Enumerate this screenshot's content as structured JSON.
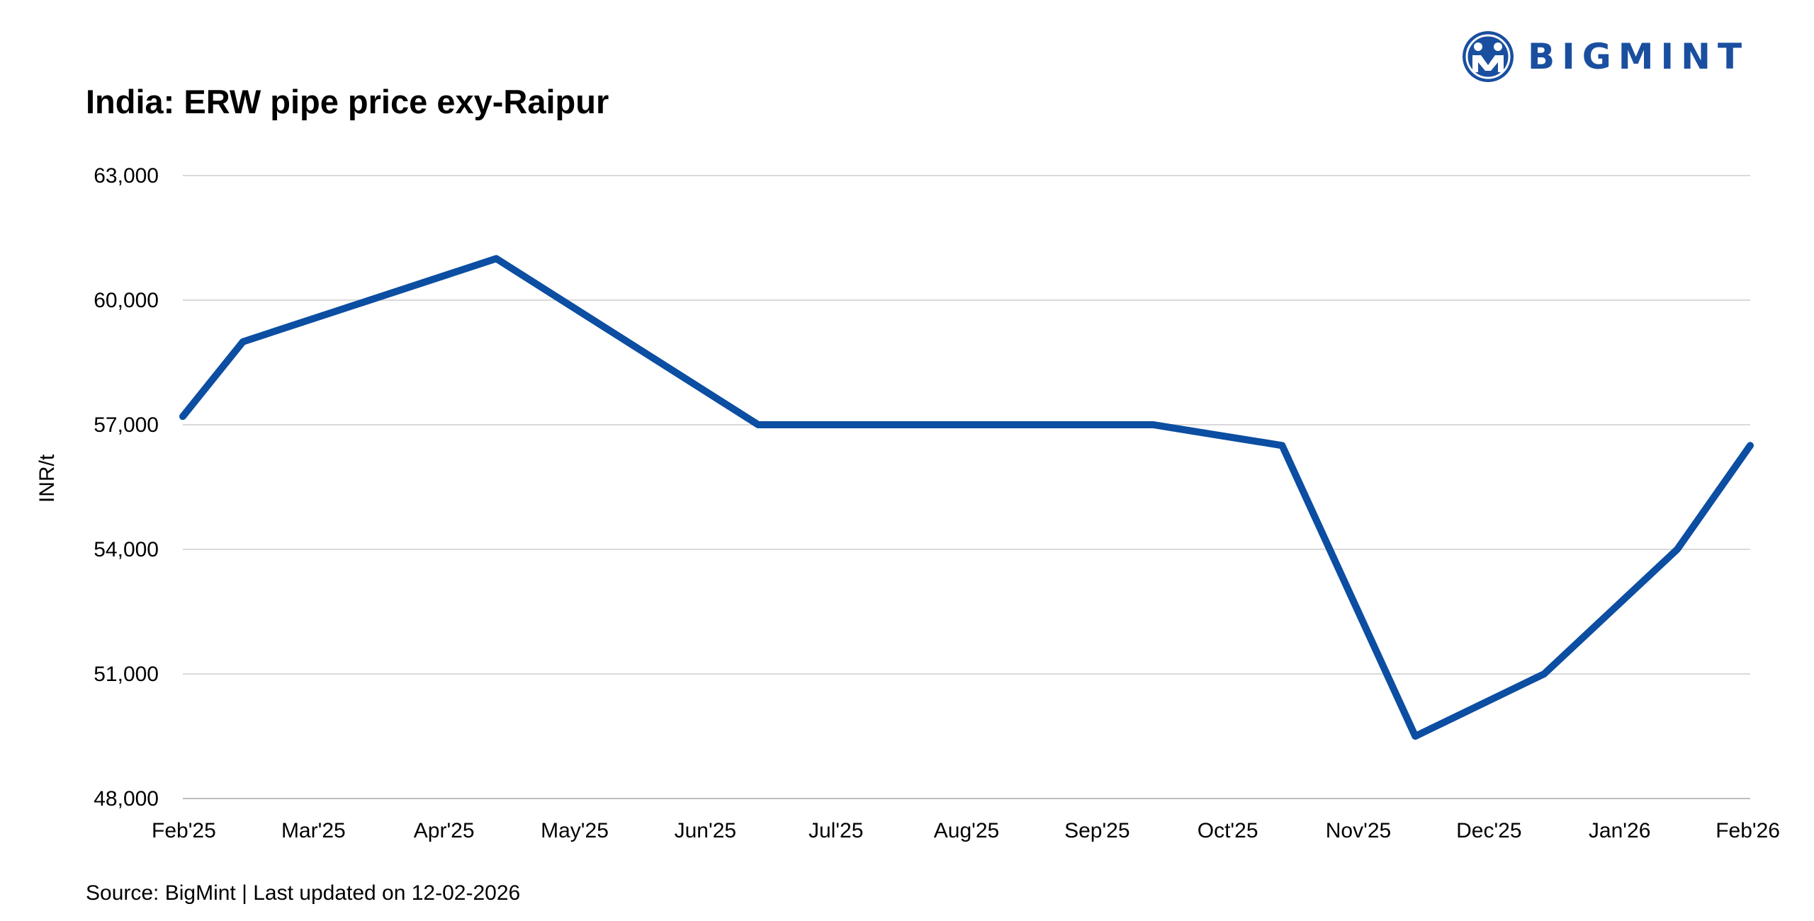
{
  "brand": {
    "name": "BIGMINT",
    "accent": "#1a4fa0"
  },
  "footer": {
    "source": "Source: BigMint | Last updated on 12-02-2026"
  },
  "chart_data": {
    "type": "line",
    "title": "India: ERW pipe price exy-Raipur",
    "ylabel": "INR/t",
    "xlabel": "",
    "x_tick_labels": [
      "Feb'25",
      "Mar'25",
      "Apr'25",
      "May'25",
      "Jun'25",
      "Jul'25",
      "Aug'25",
      "Sep'25",
      "Oct'25",
      "Nov'25",
      "Dec'25",
      "Jan'26",
      "Feb'26"
    ],
    "y_ticks": [
      48000,
      51000,
      54000,
      57000,
      60000,
      63000
    ],
    "y_tick_labels": [
      "48,000",
      "51,000",
      "54,000",
      "57,000",
      "60,000",
      "63,000"
    ],
    "ylim": [
      48000,
      63000
    ],
    "grid": "horizontal",
    "legend": "none",
    "series": [
      {
        "color": "#0b4ea2",
        "points": [
          {
            "x": "2025-02-01",
            "y": 57200
          },
          {
            "x": "2025-02-15",
            "y": 59000
          },
          {
            "x": "2025-04-15",
            "y": 61000
          },
          {
            "x": "2025-06-15",
            "y": 57000
          },
          {
            "x": "2025-07-15",
            "y": 57000
          },
          {
            "x": "2025-08-15",
            "y": 57000
          },
          {
            "x": "2025-09-15",
            "y": 57000
          },
          {
            "x": "2025-10-15",
            "y": 56500
          },
          {
            "x": "2025-11-15",
            "y": 49500
          },
          {
            "x": "2025-12-15",
            "y": 51000
          },
          {
            "x": "2026-01-15",
            "y": 54000
          },
          {
            "x": "2026-02-01",
            "y": 56500
          }
        ]
      }
    ]
  }
}
